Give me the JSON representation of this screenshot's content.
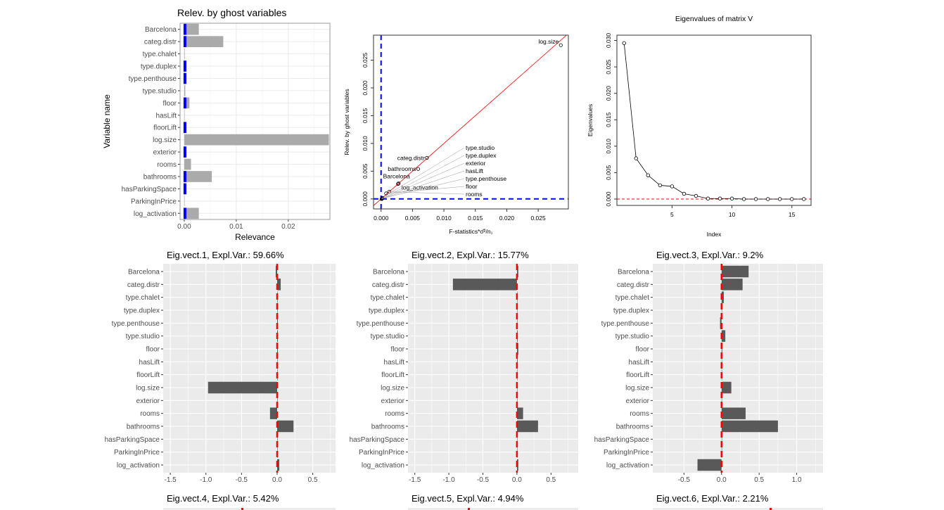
{
  "chart_data": [
    {
      "type": "bar",
      "title": "Relev. by ghost variables",
      "xlabel": "Relevance",
      "ylabel": "Variable name",
      "xlim": [
        -0.0008,
        0.028
      ],
      "xticks": [
        "0.00",
        "0.01",
        "0.02"
      ],
      "xtick_values": [
        0,
        0.01,
        0.02
      ],
      "grid": true,
      "categories": [
        "Barcelona",
        "categ.distr",
        "type.chalet",
        "type.duplex",
        "type.penthouse",
        "type.studio",
        "floor",
        "hasLift",
        "floorLift",
        "log.size",
        "exterior",
        "rooms",
        "bathrooms",
        "hasParkingSpace",
        "ParkingInPrice",
        "log_activation"
      ],
      "values": [
        0.0028,
        0.0075,
        0.0001,
        0,
        0.0001,
        0.0002,
        0.001,
        0,
        0,
        0.0278,
        0,
        0.0013,
        0.0053,
        0.0001,
        0,
        0.0028
      ],
      "marker_rows": [
        "Barcelona",
        "categ.distr",
        "type.duplex",
        "type.penthouse",
        "floor",
        "floorLift",
        "exterior",
        "bathrooms",
        "hasParkingSpace",
        "log_activation"
      ],
      "colors": {
        "bar": "#aaaaaa",
        "marker": "#0000ff"
      }
    },
    {
      "type": "scatter",
      "xlabel": "F-statistics*σ̂²/n₁",
      "ylabel": "Relev. by ghost variables",
      "xlim": [
        -0.0012,
        0.0298
      ],
      "ylim": [
        -0.0018,
        0.0295
      ],
      "xticks": [
        "0.000",
        "0.005",
        "0.010",
        "0.015",
        "0.020",
        "0.025"
      ],
      "yticks": [
        "0.000",
        "0.005",
        "0.010",
        "0.015",
        "0.020",
        "0.025"
      ],
      "points": [
        {
          "label": "log.size",
          "x": 0.0286,
          "y": 0.0277
        },
        {
          "label": "categ.distr",
          "x": 0.0073,
          "y": 0.0074
        },
        {
          "label": "bathrooms",
          "x": 0.0059,
          "y": 0.0054
        },
        {
          "label": "Barcelona",
          "x": 0.0028,
          "y": 0.0028
        },
        {
          "label": "log_activation",
          "x": 0.0027,
          "y": 0.0027
        },
        {
          "label": "rooms",
          "x": 0.0013,
          "y": 0.0013
        },
        {
          "label": "floor",
          "x": 0.0008,
          "y": 0.001
        },
        {
          "label": "type.penthouse",
          "x": 0.0002,
          "y": 0.0001
        },
        {
          "label": "hasLift",
          "x": 0.0001,
          "y": 0
        },
        {
          "label": "exterior",
          "x": 0.0001,
          "y": 0
        },
        {
          "label": "type.duplex",
          "x": 0.0001,
          "y": 0
        },
        {
          "label": "type.studio",
          "x": 0.0002,
          "y": 0.0002
        }
      ],
      "reference_line": "y = x",
      "colors": {
        "reference_line": "#ff0000",
        "threshold_lines": "#0000ff"
      }
    },
    {
      "type": "line",
      "title": "Eigenvalues of matrix V",
      "xlabel": "Index",
      "ylabel": "Eigenvalues",
      "xlim": [
        0.4,
        16.6
      ],
      "ylim": [
        -0.0012,
        0.031
      ],
      "xticks": [
        "5",
        "10",
        "15"
      ],
      "yticks": [
        "0.000",
        "0.005",
        "0.010",
        "0.015",
        "0.020",
        "0.025",
        "0.030"
      ],
      "x": [
        1,
        2,
        3,
        4,
        5,
        6,
        7,
        8,
        9,
        10,
        11,
        12,
        13,
        14,
        15,
        16
      ],
      "values": [
        0.0295,
        0.0077,
        0.0045,
        0.0026,
        0.0024,
        0.001,
        0.0006,
        0.0001,
        0.0001,
        0.0001,
        0,
        0,
        0,
        0,
        0,
        0
      ],
      "colors": {
        "line": "#000000",
        "zero_line": "#ff0000"
      }
    },
    {
      "type": "bar",
      "title": "Eig.vect.1, Expl.Var.: 59.66%",
      "xlim": [
        -1.6,
        0.82
      ],
      "xticks": [
        "-1.5",
        "-1.0",
        "-0.5",
        "0.0",
        "0.5"
      ],
      "categories": [
        "Barcelona",
        "categ.distr",
        "type.chalet",
        "type.duplex",
        "type.penthouse",
        "type.studio",
        "floor",
        "hasLift",
        "floorLift",
        "log.size",
        "exterior",
        "rooms",
        "bathrooms",
        "hasParkingSpace",
        "ParkingInPrice",
        "log_activation"
      ],
      "values": [
        -0.02,
        0.05,
        0,
        0,
        0.01,
        0.01,
        0.01,
        0,
        0,
        -0.97,
        0,
        -0.1,
        0.23,
        0,
        0,
        0.03
      ]
    },
    {
      "type": "bar",
      "title": "Eig.vect.2, Expl.Var.: 15.77%",
      "xlim": [
        -1.6,
        0.9
      ],
      "xticks": [
        "-1.5",
        "-1.0",
        "-0.5",
        "0.0",
        "0.5"
      ],
      "categories": [
        "Barcelona",
        "categ.distr",
        "type.chalet",
        "type.duplex",
        "type.penthouse",
        "type.studio",
        "floor",
        "hasLift",
        "floorLift",
        "log.size",
        "exterior",
        "rooms",
        "bathrooms",
        "hasParkingSpace",
        "ParkingInPrice",
        "log_activation"
      ],
      "values": [
        0.02,
        -0.94,
        0,
        0,
        0,
        0.01,
        0.02,
        0.01,
        0,
        0,
        0,
        0.09,
        0.31,
        0,
        0,
        0.02
      ]
    },
    {
      "type": "bar",
      "title": "Eig.vect.3, Expl.Var.: 9.2%",
      "xlim": [
        -0.915,
        1.35
      ],
      "xticks": [
        "-0.5",
        "0.0",
        "0.5",
        "1.0"
      ],
      "categories": [
        "Barcelona",
        "categ.distr",
        "type.chalet",
        "type.duplex",
        "type.penthouse",
        "type.studio",
        "floor",
        "hasLift",
        "floorLift",
        "log.size",
        "exterior",
        "rooms",
        "bathrooms",
        "hasParkingSpace",
        "ParkingInPrice",
        "log_activation"
      ],
      "values": [
        0.36,
        0.28,
        0.03,
        0,
        -0.02,
        0.05,
        0.01,
        0,
        0,
        0.13,
        0,
        0.32,
        0.75,
        0,
        0,
        -0.32
      ]
    },
    {
      "type": "bar",
      "title": "Eig.vect.4, Expl.Var.: 5.42%"
    },
    {
      "type": "bar",
      "title": "Eig.vect.5, Expl.Var.: 4.94%"
    },
    {
      "type": "bar",
      "title": "Eig.vect.6, Expl.Var.: 2.21%"
    }
  ]
}
